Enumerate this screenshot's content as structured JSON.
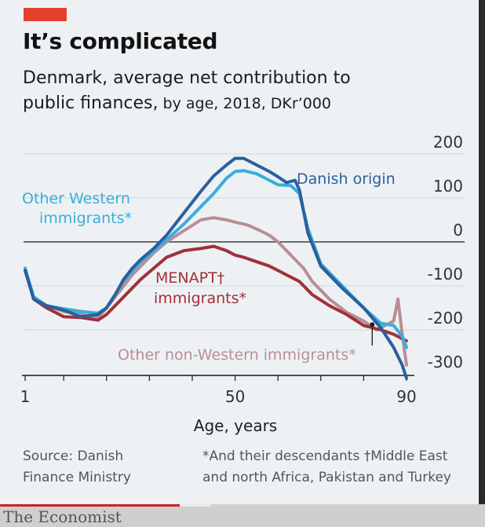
{
  "header": {
    "title": "It’s complicated",
    "subtitle_main": "Denmark, average net contribution to public finances,",
    "subtitle_rest": " by age, 2018, DKr’000"
  },
  "chart_data": {
    "type": "line",
    "title": "It’s complicated",
    "subtitle": "Denmark, average net contribution to public finances, by age, 2018, DKr’000",
    "xlabel": "Age, years",
    "ylabel": "",
    "xlim": [
      1,
      90
    ],
    "ylim": [
      -300,
      200
    ],
    "x_ticks": [
      1,
      50,
      90
    ],
    "y_ticks": [
      200,
      100,
      0,
      -100,
      -200,
      -300
    ],
    "y_axis_position": "right",
    "grid": "horizontal",
    "series": [
      {
        "name": "Danish origin",
        "label_text": "Danish origin",
        "color": "#2b5f9e",
        "points": [
          [
            1,
            -65
          ],
          [
            3,
            -130
          ],
          [
            6,
            -145
          ],
          [
            10,
            -155
          ],
          [
            14,
            -170
          ],
          [
            18,
            -165
          ],
          [
            20,
            -150
          ],
          [
            22,
            -120
          ],
          [
            24,
            -85
          ],
          [
            26,
            -60
          ],
          [
            28,
            -40
          ],
          [
            31,
            -15
          ],
          [
            34,
            15
          ],
          [
            38,
            65
          ],
          [
            42,
            115
          ],
          [
            45,
            150
          ],
          [
            48,
            175
          ],
          [
            50,
            190
          ],
          [
            52,
            190
          ],
          [
            55,
            175
          ],
          [
            58,
            160
          ],
          [
            60,
            148
          ],
          [
            62,
            135
          ],
          [
            64,
            140
          ],
          [
            65,
            118
          ],
          [
            67,
            20
          ],
          [
            70,
            -55
          ],
          [
            75,
            -105
          ],
          [
            80,
            -150
          ],
          [
            84,
            -195
          ],
          [
            87,
            -240
          ],
          [
            89,
            -280
          ],
          [
            90,
            -310
          ]
        ]
      },
      {
        "name": "Other Western immigrants*",
        "label_lines": [
          "Other Western",
          "immigrants*"
        ],
        "color": "#3aaed8",
        "points": [
          [
            1,
            -60
          ],
          [
            3,
            -125
          ],
          [
            6,
            -145
          ],
          [
            10,
            -152
          ],
          [
            14,
            -158
          ],
          [
            18,
            -162
          ],
          [
            20,
            -150
          ],
          [
            22,
            -120
          ],
          [
            24,
            -88
          ],
          [
            26,
            -65
          ],
          [
            28,
            -45
          ],
          [
            31,
            -20
          ],
          [
            34,
            5
          ],
          [
            38,
            40
          ],
          [
            42,
            80
          ],
          [
            45,
            110
          ],
          [
            48,
            145
          ],
          [
            50,
            160
          ],
          [
            52,
            162
          ],
          [
            55,
            155
          ],
          [
            58,
            140
          ],
          [
            60,
            130
          ],
          [
            63,
            128
          ],
          [
            65,
            110
          ],
          [
            67,
            30
          ],
          [
            70,
            -50
          ],
          [
            75,
            -100
          ],
          [
            80,
            -150
          ],
          [
            84,
            -185
          ],
          [
            87,
            -190
          ],
          [
            89,
            -215
          ],
          [
            90,
            -240
          ]
        ]
      },
      {
        "name": "MENAPT† immigrants*",
        "label_lines": [
          "MENAPT†",
          "immigrants*"
        ],
        "color": "#a0303a",
        "points": [
          [
            1,
            -60
          ],
          [
            3,
            -130
          ],
          [
            6,
            -150
          ],
          [
            10,
            -170
          ],
          [
            14,
            -172
          ],
          [
            18,
            -178
          ],
          [
            20,
            -165
          ],
          [
            22,
            -145
          ],
          [
            24,
            -125
          ],
          [
            26,
            -105
          ],
          [
            28,
            -85
          ],
          [
            31,
            -60
          ],
          [
            34,
            -35
          ],
          [
            38,
            -20
          ],
          [
            42,
            -15
          ],
          [
            45,
            -10
          ],
          [
            48,
            -20
          ],
          [
            50,
            -30
          ],
          [
            52,
            -35
          ],
          [
            55,
            -45
          ],
          [
            58,
            -55
          ],
          [
            60,
            -65
          ],
          [
            62,
            -75
          ],
          [
            65,
            -90
          ],
          [
            68,
            -120
          ],
          [
            72,
            -145
          ],
          [
            76,
            -165
          ],
          [
            80,
            -190
          ],
          [
            84,
            -200
          ],
          [
            87,
            -210
          ],
          [
            89,
            -220
          ],
          [
            90,
            -225
          ]
        ]
      },
      {
        "name": "Other non-Western immigrants*",
        "label_text": "Other non-Western immigrants*",
        "color": "#b88e94",
        "points": [
          [
            1,
            -60
          ],
          [
            3,
            -130
          ],
          [
            6,
            -145
          ],
          [
            10,
            -158
          ],
          [
            14,
            -165
          ],
          [
            18,
            -172
          ],
          [
            20,
            -150
          ],
          [
            22,
            -125
          ],
          [
            24,
            -100
          ],
          [
            26,
            -75
          ],
          [
            28,
            -55
          ],
          [
            31,
            -25
          ],
          [
            34,
            0
          ],
          [
            38,
            25
          ],
          [
            42,
            50
          ],
          [
            45,
            55
          ],
          [
            48,
            50
          ],
          [
            50,
            45
          ],
          [
            53,
            38
          ],
          [
            56,
            25
          ],
          [
            58,
            15
          ],
          [
            60,
            0
          ],
          [
            62,
            -20
          ],
          [
            64,
            -40
          ],
          [
            66,
            -60
          ],
          [
            68,
            -90
          ],
          [
            72,
            -130
          ],
          [
            76,
            -160
          ],
          [
            80,
            -180
          ],
          [
            83,
            -200
          ],
          [
            85,
            -190
          ],
          [
            87,
            -180
          ],
          [
            88,
            -130
          ],
          [
            89,
            -210
          ],
          [
            90,
            -280
          ]
        ]
      }
    ],
    "annotation_marker": {
      "x": 82,
      "y": -188
    }
  },
  "footnotes": {
    "source": [
      "Source: Danish",
      "Finance Ministry"
    ],
    "notes": [
      "*And their descendants  †Middle East",
      "and north Africa, Pakistan and Turkey"
    ]
  },
  "footer": {
    "brand": "The Economist"
  }
}
